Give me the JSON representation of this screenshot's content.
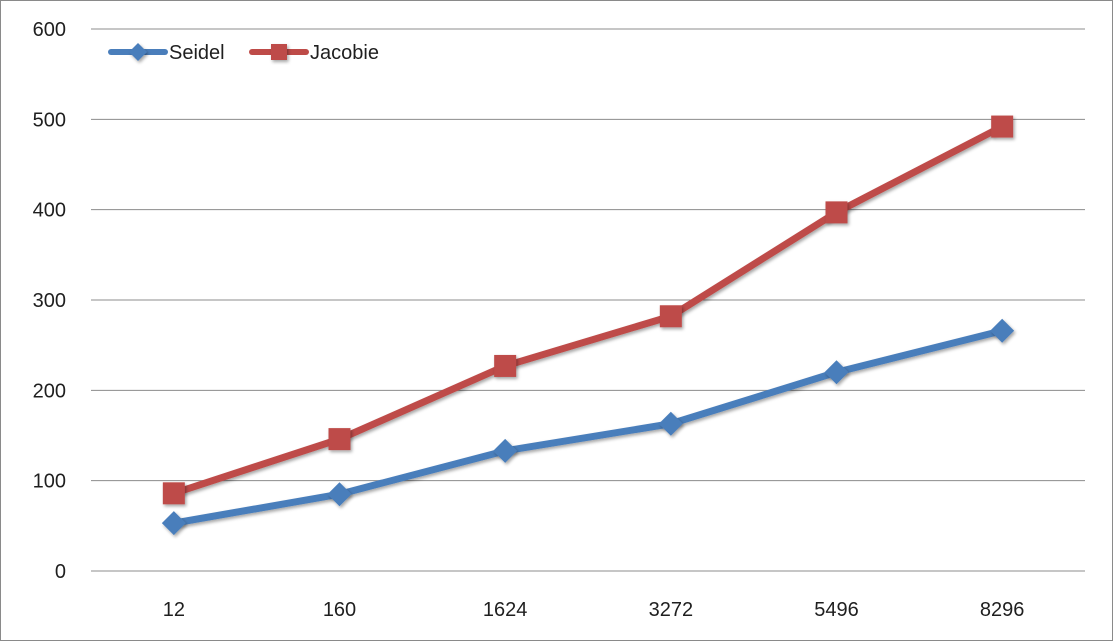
{
  "chart_data": {
    "type": "line",
    "categories": [
      "12",
      "160",
      "1624",
      "3272",
      "5496",
      "8296"
    ],
    "series": [
      {
        "name": "Seidel",
        "values": [
          53,
          85,
          133,
          163,
          220,
          266
        ],
        "color": "#4a7ebb",
        "marker": "diamond"
      },
      {
        "name": "Jacobie",
        "values": [
          86,
          146,
          227,
          282,
          397,
          492
        ],
        "color": "#be4b48",
        "marker": "square"
      }
    ],
    "ylim": [
      0,
      600
    ],
    "yticks": [
      0,
      100,
      200,
      300,
      400,
      500,
      600
    ],
    "grid": true,
    "legend_position": "top-left",
    "xlabel": "",
    "ylabel": "",
    "title": ""
  }
}
